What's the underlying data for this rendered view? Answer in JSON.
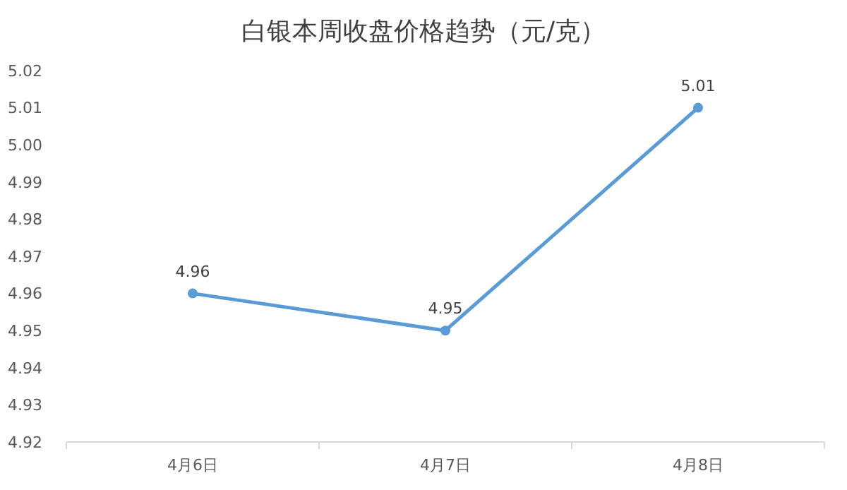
{
  "chart_data": {
    "type": "line",
    "title": "白银本周收盘价格趋势（元/克）",
    "categories": [
      "4月6日",
      "4月7日",
      "4月8日"
    ],
    "series": [
      {
        "color": "#5b9bd5",
        "values": [
          4.96,
          4.95,
          5.01
        ]
      }
    ],
    "ylim": [
      4.92,
      5.02
    ],
    "yticks": [
      4.92,
      4.93,
      4.94,
      4.95,
      4.96,
      4.97,
      4.98,
      4.99,
      {
        "value": 5.0,
        "label": "5.00"
      },
      5.01,
      5.02
    ],
    "data_labels": true,
    "marker": "circle",
    "line_style": "solid",
    "grid": false
  }
}
